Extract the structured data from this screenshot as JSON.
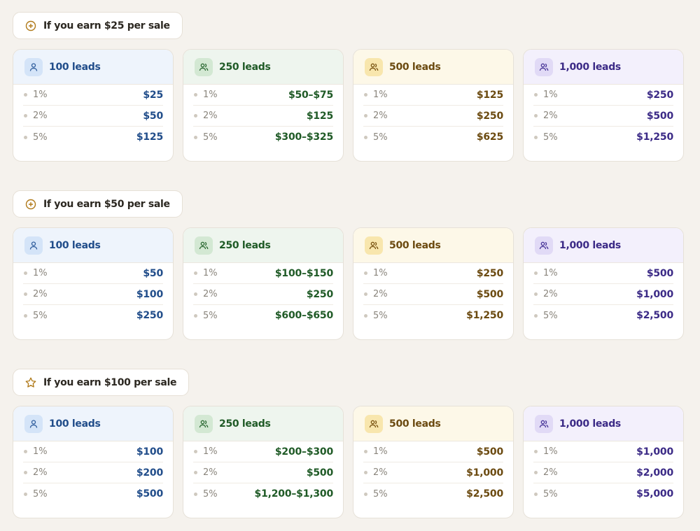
{
  "colors": {
    "background": "#f5f2ed",
    "blue": "#214d8a",
    "green": "#1f5a26",
    "amber": "#6b4a10",
    "purple": "#3b2a86",
    "pill_icon": "#b07a1a"
  },
  "sections": [
    {
      "title": "If you earn $25 per sale",
      "icon": "plus-circle-icon",
      "cards": [
        {
          "label": "100 leads",
          "icon": "user-icon",
          "rows": [
            {
              "pct": "1%",
              "amount": "$25"
            },
            {
              "pct": "2%",
              "amount": "$50"
            },
            {
              "pct": "5%",
              "amount": "$125"
            }
          ]
        },
        {
          "label": "250 leads",
          "icon": "users-icon",
          "rows": [
            {
              "pct": "1%",
              "amount": "$50–$75"
            },
            {
              "pct": "2%",
              "amount": "$125"
            },
            {
              "pct": "5%",
              "amount": "$300–$325"
            }
          ]
        },
        {
          "label": "500 leads",
          "icon": "users-icon",
          "rows": [
            {
              "pct": "1%",
              "amount": "$125"
            },
            {
              "pct": "2%",
              "amount": "$250"
            },
            {
              "pct": "5%",
              "amount": "$625"
            }
          ]
        },
        {
          "label": "1,000 leads",
          "icon": "users-icon",
          "rows": [
            {
              "pct": "1%",
              "amount": "$250"
            },
            {
              "pct": "2%",
              "amount": "$500"
            },
            {
              "pct": "5%",
              "amount": "$1,250"
            }
          ]
        }
      ]
    },
    {
      "title": "If you earn $50 per sale",
      "icon": "plus-circle-icon",
      "cards": [
        {
          "label": "100 leads",
          "icon": "user-icon",
          "rows": [
            {
              "pct": "1%",
              "amount": "$50"
            },
            {
              "pct": "2%",
              "amount": "$100"
            },
            {
              "pct": "5%",
              "amount": "$250"
            }
          ]
        },
        {
          "label": "250 leads",
          "icon": "users-icon",
          "rows": [
            {
              "pct": "1%",
              "amount": "$100–$150"
            },
            {
              "pct": "2%",
              "amount": "$250"
            },
            {
              "pct": "5%",
              "amount": "$600–$650"
            }
          ]
        },
        {
          "label": "500 leads",
          "icon": "users-icon",
          "rows": [
            {
              "pct": "1%",
              "amount": "$250"
            },
            {
              "pct": "2%",
              "amount": "$500"
            },
            {
              "pct": "5%",
              "amount": "$1,250"
            }
          ]
        },
        {
          "label": "1,000 leads",
          "icon": "users-icon",
          "rows": [
            {
              "pct": "1%",
              "amount": "$500"
            },
            {
              "pct": "2%",
              "amount": "$1,000"
            },
            {
              "pct": "5%",
              "amount": "$2,500"
            }
          ]
        }
      ]
    },
    {
      "title": "If you earn $100 per sale",
      "icon": "star-icon",
      "cards": [
        {
          "label": "100 leads",
          "icon": "user-icon",
          "rows": [
            {
              "pct": "1%",
              "amount": "$100"
            },
            {
              "pct": "2%",
              "amount": "$200"
            },
            {
              "pct": "5%",
              "amount": "$500"
            }
          ]
        },
        {
          "label": "250 leads",
          "icon": "users-icon",
          "rows": [
            {
              "pct": "1%",
              "amount": "$200–$300"
            },
            {
              "pct": "2%",
              "amount": "$500"
            },
            {
              "pct": "5%",
              "amount": "$1,200–$1,300"
            }
          ]
        },
        {
          "label": "500 leads",
          "icon": "users-icon",
          "rows": [
            {
              "pct": "1%",
              "amount": "$500"
            },
            {
              "pct": "2%",
              "amount": "$1,000"
            },
            {
              "pct": "5%",
              "amount": "$2,500"
            }
          ]
        },
        {
          "label": "1,000 leads",
          "icon": "users-icon",
          "rows": [
            {
              "pct": "1%",
              "amount": "$1,000"
            },
            {
              "pct": "2%",
              "amount": "$2,000"
            },
            {
              "pct": "5%",
              "amount": "$5,000"
            }
          ]
        }
      ]
    }
  ]
}
